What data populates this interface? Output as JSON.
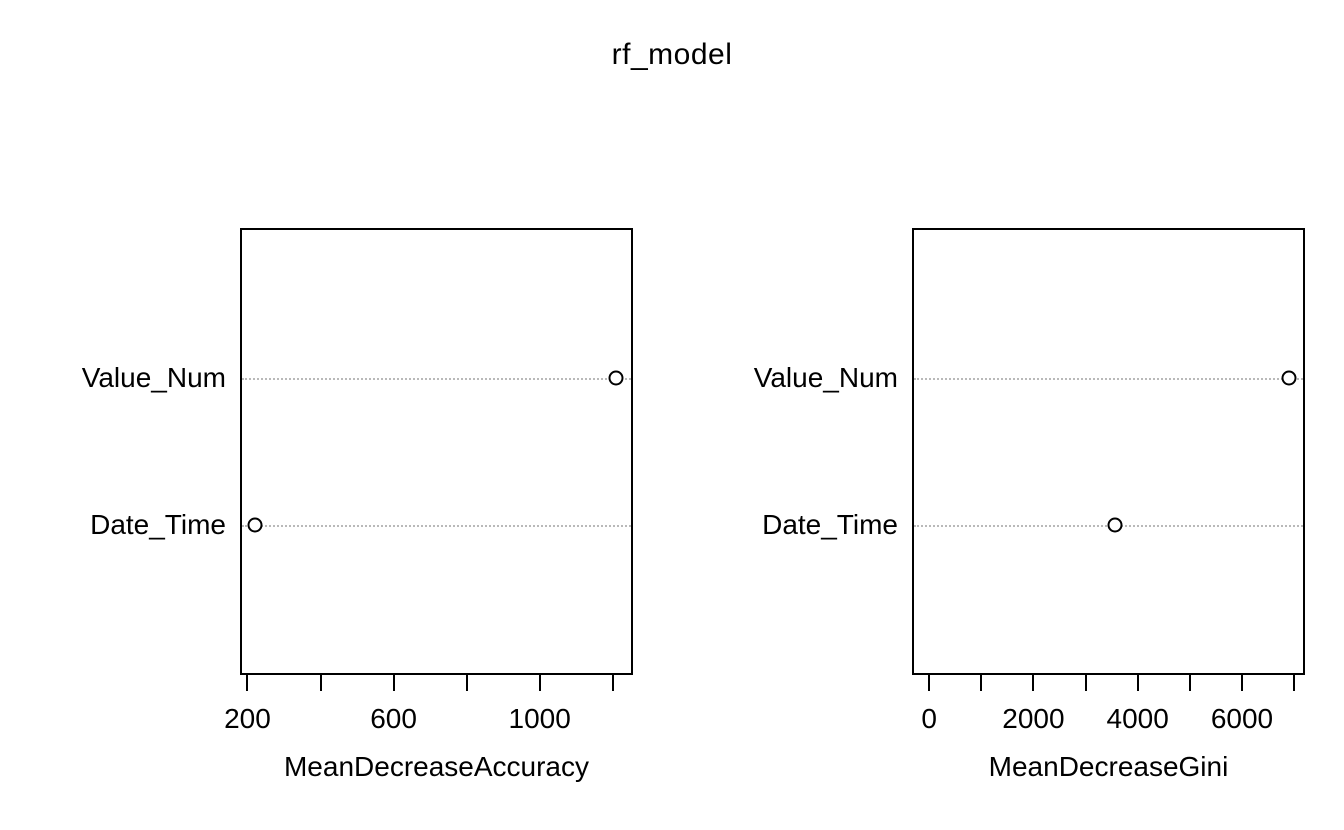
{
  "figure": {
    "title": "rf_model",
    "background_color": "#ffffff",
    "text_color": "#000000",
    "grid_color": "#b9b9b9"
  },
  "chart_data": [
    {
      "type": "scatter",
      "variant": "dotchart",
      "title": "rf_model",
      "xlabel": "MeanDecreaseAccuracy",
      "ylabel": "",
      "categories": [
        "Value_Num",
        "Date_Time"
      ],
      "values": [
        1210,
        220
      ],
      "xlim": [
        185,
        1250
      ],
      "grid": "dotted-horizontal",
      "legend": "none",
      "ticks": [
        {
          "value": 200,
          "label": "200"
        },
        {
          "value": 400,
          "label": ""
        },
        {
          "value": 600,
          "label": "600"
        },
        {
          "value": 800,
          "label": ""
        },
        {
          "value": 1000,
          "label": "1000"
        },
        {
          "value": 1200,
          "label": ""
        }
      ]
    },
    {
      "type": "scatter",
      "variant": "dotchart",
      "title": "rf_model",
      "xlabel": "MeanDecreaseGini",
      "ylabel": "",
      "categories": [
        "Value_Num",
        "Date_Time"
      ],
      "values": [
        6900,
        3560
      ],
      "xlim": [
        -290,
        7170
      ],
      "grid": "dotted-horizontal",
      "legend": "none",
      "ticks": [
        {
          "value": 0,
          "label": "0"
        },
        {
          "value": 1000,
          "label": ""
        },
        {
          "value": 2000,
          "label": "2000"
        },
        {
          "value": 3000,
          "label": ""
        },
        {
          "value": 4000,
          "label": "4000"
        },
        {
          "value": 5000,
          "label": ""
        },
        {
          "value": 6000,
          "label": "6000"
        },
        {
          "value": 7000,
          "label": ""
        }
      ]
    }
  ]
}
